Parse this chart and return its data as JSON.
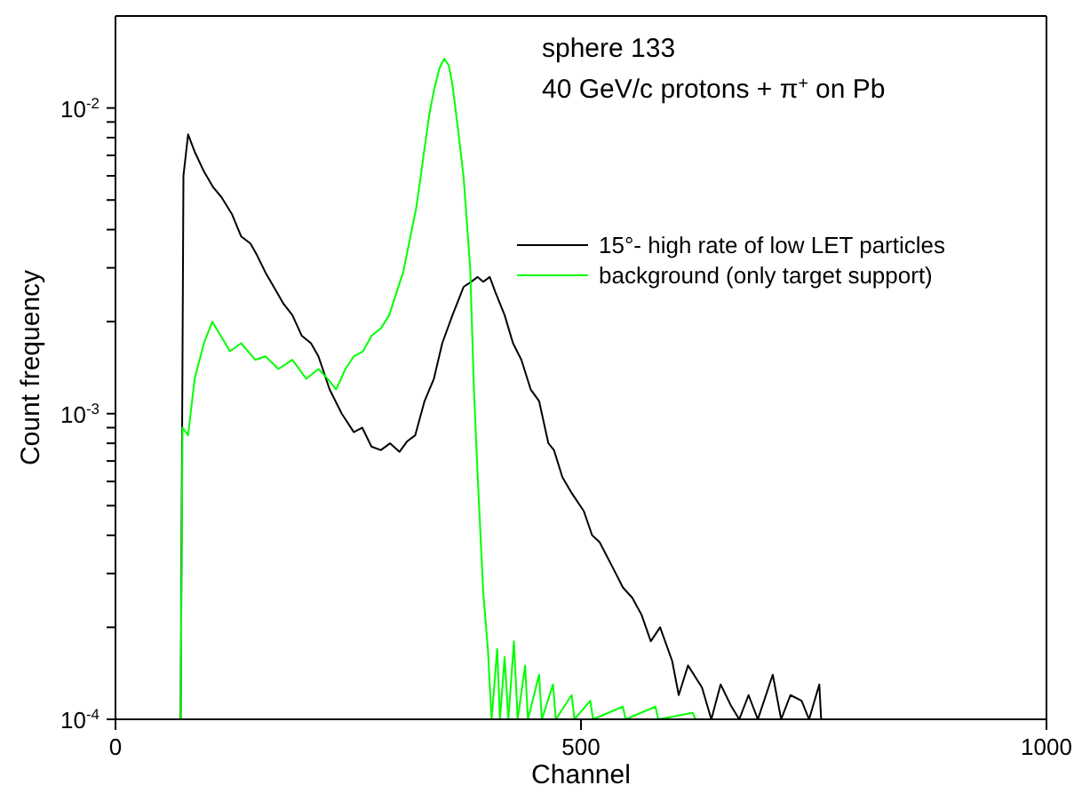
{
  "chart_data": {
    "type": "line",
    "xlabel": "Channel",
    "ylabel": "Count frequency",
    "annotations": [
      "sphere 133",
      "40 GeV/c protons + π$^{+}$ on Pb"
    ],
    "xlim": [
      0,
      1000
    ],
    "xticks": [
      0,
      500,
      1000
    ],
    "ylim": [
      0.0001,
      0.02
    ],
    "log": "y",
    "yticks": [
      {
        "value": 0.0001,
        "label": "10$^{-4}$"
      },
      {
        "value": 0.0002,
        "label": null
      },
      {
        "value": 0.0003,
        "label": null
      },
      {
        "value": 0.0004,
        "label": null
      },
      {
        "value": 0.0005,
        "label": null
      },
      {
        "value": 0.0006,
        "label": null
      },
      {
        "value": 0.0007,
        "label": null
      },
      {
        "value": 0.0008,
        "label": null
      },
      {
        "value": 0.0009,
        "label": null
      },
      {
        "value": 0.001,
        "label": "10$^{-3}$"
      },
      {
        "value": 0.002,
        "label": null
      },
      {
        "value": 0.003,
        "label": null
      },
      {
        "value": 0.004,
        "label": null
      },
      {
        "value": 0.005,
        "label": null
      },
      {
        "value": 0.006,
        "label": null
      },
      {
        "value": 0.007,
        "label": null
      },
      {
        "value": 0.008,
        "label": null
      },
      {
        "value": 0.009,
        "label": null
      },
      {
        "value": 0.01,
        "label": "10$^{-2}$"
      }
    ],
    "legend": "top right",
    "marker": "none",
    "line_style": "solid",
    "series": [
      {
        "name": "15°- high rate of low LET particles",
        "color": "#000000",
        "x": [
          70,
          73,
          78,
          85,
          95,
          105,
          114,
          125,
          135,
          145,
          152,
          161,
          170,
          180,
          190,
          200,
          210,
          218,
          230,
          243,
          256,
          265,
          275,
          285,
          295,
          305,
          313,
          322,
          332,
          342,
          351,
          362,
          374,
          382,
          389,
          395,
          402,
          408,
          418,
          427,
          436,
          446,
          455,
          465,
          471,
          480,
          490,
          503,
          512,
          520,
          535,
          545,
          555,
          565,
          575,
          585,
          598,
          605,
          615,
          630,
          640,
          650,
          661,
          670,
          680,
          690,
          706,
          715,
          725,
          737,
          745,
          756,
          758
        ],
        "values": [
          0.0001,
          0.006,
          0.0082,
          0.0072,
          0.0062,
          0.0055,
          0.0051,
          0.0045,
          0.0038,
          0.0036,
          0.0033,
          0.0029,
          0.0026,
          0.0023,
          0.0021,
          0.0018,
          0.0017,
          0.00154,
          0.0012,
          0.001,
          0.00087,
          0.0009,
          0.00078,
          0.00076,
          0.0008,
          0.00075,
          0.00081,
          0.00085,
          0.0011,
          0.0013,
          0.0017,
          0.0021,
          0.0026,
          0.0027,
          0.0028,
          0.0027,
          0.0028,
          0.0025,
          0.0021,
          0.0017,
          0.0015,
          0.0012,
          0.0011,
          0.0008,
          0.00076,
          0.00062,
          0.00055,
          0.00048,
          0.0004,
          0.00038,
          0.00031,
          0.00027,
          0.00025,
          0.00022,
          0.00018,
          0.0002,
          0.000155,
          0.00012,
          0.00015,
          0.000127,
          0.0001,
          0.00013,
          0.000111,
          0.0001,
          0.00012,
          0.0001,
          0.00014,
          0.0001,
          0.00012,
          0.000115,
          0.0001,
          0.00013,
          0.0001
        ]
      },
      {
        "name": "background (only target support)",
        "color": "#00ff00",
        "x": [
          70,
          72,
          78,
          85,
          95,
          104,
          113,
          123,
          135,
          150,
          161,
          175,
          190,
          205,
          218,
          228,
          237,
          247,
          256,
          266,
          275,
          285,
          294,
          302,
          309,
          316,
          323,
          328,
          332,
          337,
          342,
          348,
          353,
          358,
          362,
          368,
          374,
          381,
          385,
          389,
          395,
          400,
          404,
          410,
          413,
          418,
          422,
          428,
          432,
          440,
          443,
          455,
          458,
          470,
          473,
          490,
          493,
          510,
          513,
          545,
          548,
          580,
          583,
          620,
          623
        ],
        "values": [
          0.0001,
          0.0009,
          0.00085,
          0.0013,
          0.0017,
          0.002,
          0.0018,
          0.0016,
          0.0017,
          0.0015,
          0.00154,
          0.0014,
          0.0015,
          0.0013,
          0.0014,
          0.0013,
          0.0012,
          0.0014,
          0.00154,
          0.0016,
          0.0018,
          0.0019,
          0.0021,
          0.0025,
          0.0029,
          0.0037,
          0.0047,
          0.006,
          0.0074,
          0.0095,
          0.0114,
          0.0135,
          0.0145,
          0.0138,
          0.0119,
          0.0085,
          0.0059,
          0.003,
          0.0012,
          0.00063,
          0.00026,
          0.00017,
          0.0001,
          0.00017,
          0.0001,
          0.00016,
          0.0001,
          0.00018,
          0.0001,
          0.00015,
          0.0001,
          0.00014,
          0.0001,
          0.00013,
          0.0001,
          0.00012,
          0.0001,
          0.000115,
          0.0001,
          0.00011,
          0.0001,
          0.00011,
          0.0001,
          0.000105,
          0.0001
        ]
      }
    ]
  }
}
